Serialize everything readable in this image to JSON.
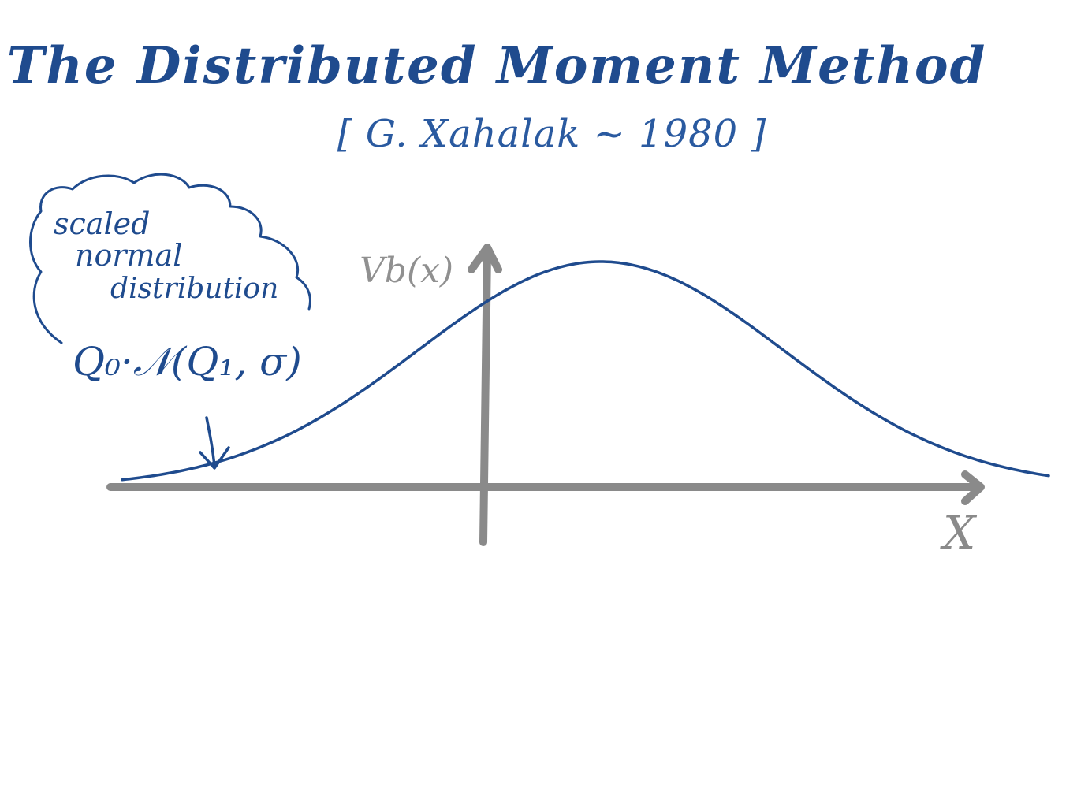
{
  "header": {
    "title": "The Distributed Moment Method",
    "subtitle": "[ G. Xahalak ~ 1980 ]"
  },
  "annotation": {
    "lines": [
      "scaled",
      "normal",
      "distribution"
    ],
    "formula": "Q₀·𝒩(Q₁, σ)"
  },
  "axes": {
    "y_label": "Vb(x)",
    "x_label": "X"
  },
  "colors": {
    "ink_blue": "#1f4b8e",
    "axis_grey": "#8a8a8a"
  }
}
